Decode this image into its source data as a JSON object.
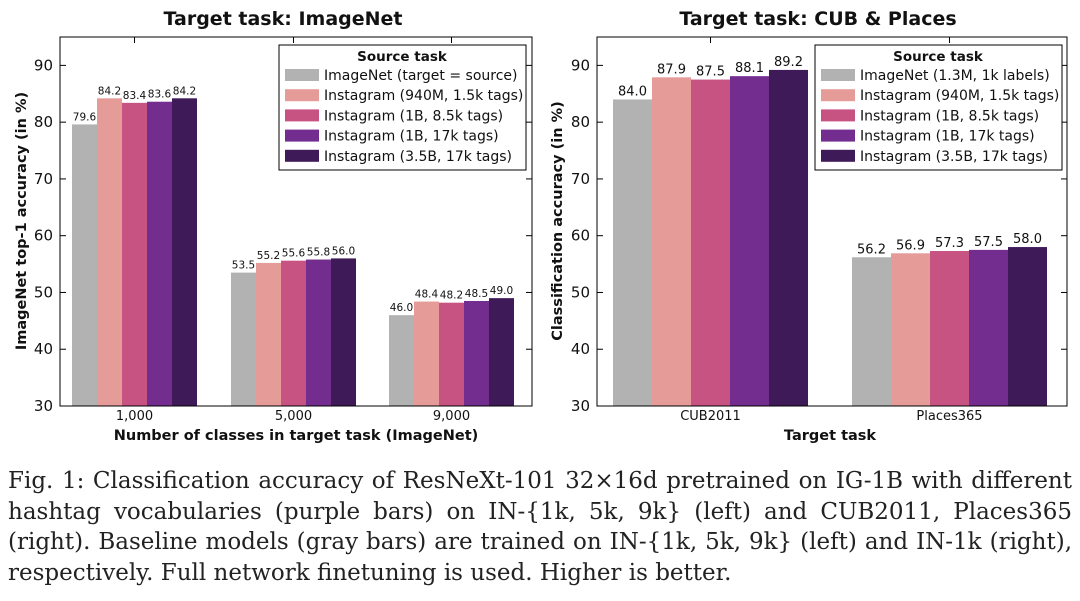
{
  "chart_data": [
    {
      "type": "bar",
      "title": "Target task: ImageNet",
      "xlabel": "Number of classes in target task (ImageNet)",
      "ylabel": "ImageNet top-1 accuracy (in %)",
      "ylim": [
        30,
        95
      ],
      "yticks": [
        30,
        40,
        50,
        60,
        70,
        80,
        90
      ],
      "categories": [
        "1,000",
        "5,000",
        "9,000"
      ],
      "legend_title": "Source task",
      "legend_position": "top-right",
      "series": [
        {
          "name": "ImageNet (target = source)",
          "color": "#b2b2b2",
          "values": [
            79.6,
            53.5,
            46.0
          ],
          "labels": [
            "79.6",
            "53.5",
            "46.0"
          ]
        },
        {
          "name": "Instagram (940M, 1.5k tags)",
          "color": "#e59c98",
          "values": [
            84.2,
            55.2,
            48.4
          ],
          "labels": [
            "84.2",
            "55.2",
            "48.4"
          ]
        },
        {
          "name": "Instagram (1B, 8.5k tags)",
          "color": "#c75383",
          "values": [
            83.4,
            55.6,
            48.2
          ],
          "labels": [
            "83.4",
            "55.6",
            "48.2"
          ]
        },
        {
          "name": "Instagram (1B, 17k tags)",
          "color": "#732d8f",
          "values": [
            83.6,
            55.8,
            48.5
          ],
          "labels": [
            "83.6",
            "55.8",
            "48.5"
          ]
        },
        {
          "name": "Instagram (3.5B, 17k tags)",
          "color": "#3f1a58",
          "values": [
            84.2,
            56.0,
            49.0
          ],
          "labels": [
            "84.2",
            "56.0",
            "49.0"
          ]
        }
      ]
    },
    {
      "type": "bar",
      "title": "Target task: CUB & Places",
      "xlabel": "Target task",
      "ylabel": "Classification accuracy (in %)",
      "ylim": [
        30,
        95
      ],
      "yticks": [
        30,
        40,
        50,
        60,
        70,
        80,
        90
      ],
      "categories": [
        "CUB2011",
        "Places365"
      ],
      "legend_title": "Source task",
      "legend_position": "top-right",
      "series": [
        {
          "name": "ImageNet (1.3M, 1k labels)",
          "color": "#b2b2b2",
          "values": [
            84.0,
            56.2
          ],
          "labels": [
            "84.0",
            "56.2"
          ]
        },
        {
          "name": "Instagram (940M, 1.5k tags)",
          "color": "#e59c98",
          "values": [
            87.9,
            56.9
          ],
          "labels": [
            "87.9",
            "56.9"
          ]
        },
        {
          "name": "Instagram (1B, 8.5k tags)",
          "color": "#c75383",
          "values": [
            87.5,
            57.3
          ],
          "labels": [
            "87.5",
            "57.3"
          ]
        },
        {
          "name": "Instagram (1B, 17k tags)",
          "color": "#732d8f",
          "values": [
            88.1,
            57.5
          ],
          "labels": [
            "88.1",
            "57.5"
          ]
        },
        {
          "name": "Instagram (3.5B, 17k tags)",
          "color": "#3f1a58",
          "values": [
            89.2,
            58.0
          ],
          "labels": [
            "89.2",
            "58.0"
          ]
        }
      ]
    }
  ],
  "caption": "Fig. 1: Classification accuracy of ResNeXt-101 32×16d pretrained on IG-1B with different hashtag vocabularies (purple bars) on IN-{1k, 5k, 9k} (left) and CUB2011, Places365 (right). Baseline models (gray bars) are trained on IN-{1k, 5k, 9k} (left) and IN-1k (right), respectively. Full network finetuning is used. Higher is better."
}
